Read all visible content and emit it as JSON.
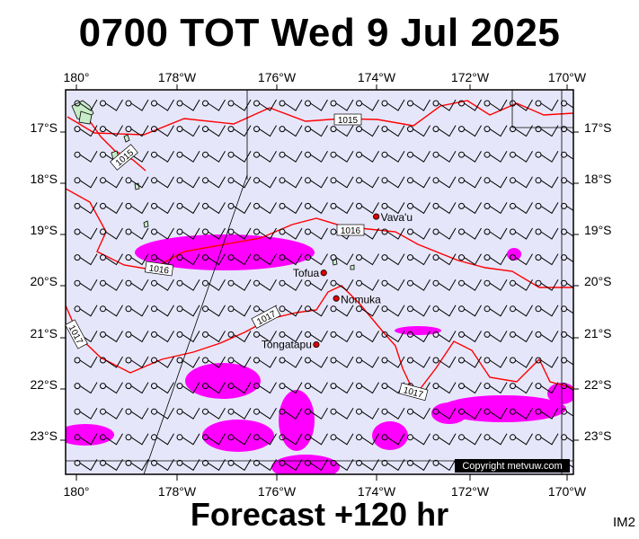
{
  "title": "0700 TOT Wed 9 Jul 2025",
  "footer": "Forecast +120 hr",
  "corner_label": "IM2",
  "copyright": "Copyright metvuw.com",
  "lon_labels": [
    "180°",
    "178°W",
    "176°W",
    "174°W",
    "172°W",
    "170°W"
  ],
  "lat_labels": [
    "17°S",
    "18°S",
    "19°S",
    "20°S",
    "21°S",
    "22°S",
    "23°S"
  ],
  "places": [
    {
      "name": "Vava'u",
      "lon": -174.0,
      "lat": -18.65
    },
    {
      "name": "Tofua",
      "lon": -175.05,
      "lat": -19.75
    },
    {
      "name": "Nomuka",
      "lon": -174.8,
      "lat": -20.25
    },
    {
      "name": "Tongatapu",
      "lon": -175.2,
      "lat": -21.15
    }
  ],
  "isobar_labels": [
    "1015",
    "1015",
    "1016",
    "1016",
    "1017",
    "1017",
    "1017"
  ],
  "colors": {
    "background": "#e6e6fa",
    "isobar": "#ff0000",
    "rain": "#ff00ff",
    "barb": "#000000"
  }
}
